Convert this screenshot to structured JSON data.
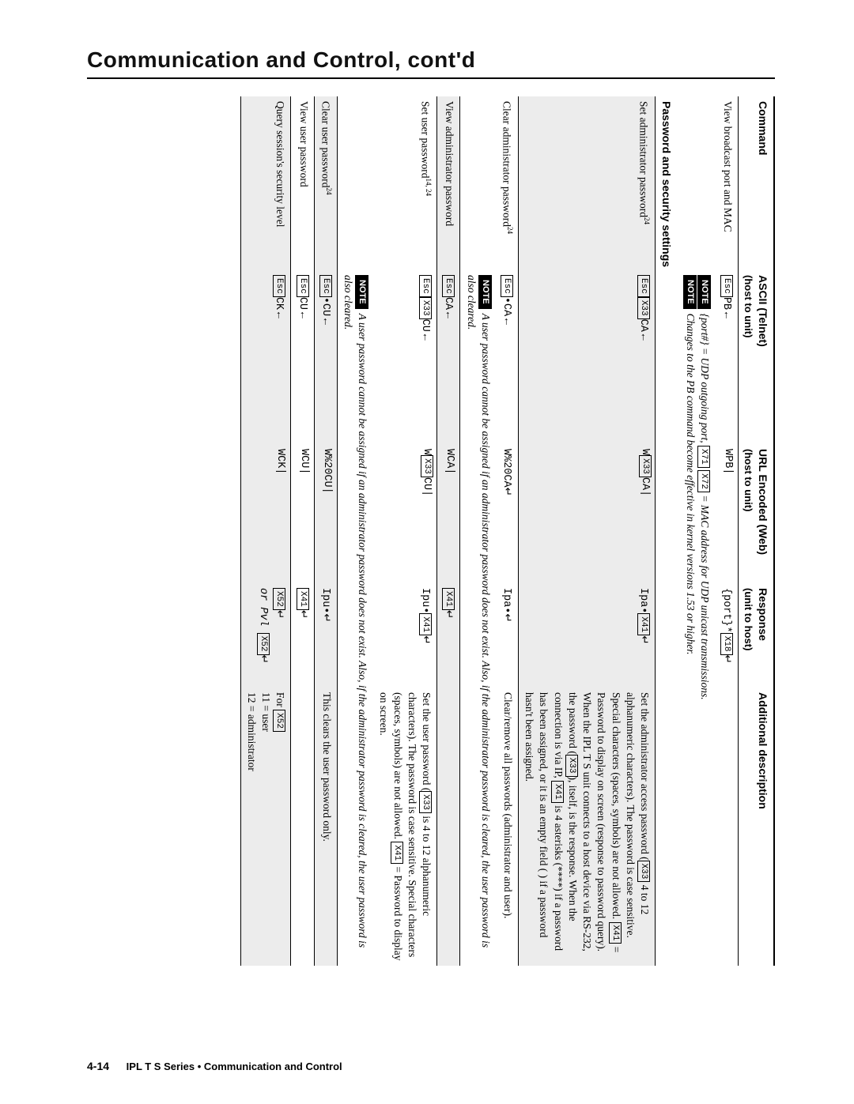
{
  "page": {
    "title": "Communication and Control, cont'd",
    "footer_page": "4-14",
    "footer_book": "IPL T S Series • Communication and Control"
  },
  "table": {
    "headers": {
      "cmd": "Command",
      "ascii": "ASCII (Telnet)",
      "ascii_sub": "(host to unit)",
      "url": "URL Encoded (Web)",
      "url_sub": "(host to unit)",
      "resp": "Response",
      "resp_sub": "(unit to host)",
      "desc": "Additional description"
    },
    "note_label": "NOTE",
    "esc_label": "Esc",
    "rows": {
      "view_broadcast": {
        "cmd": "View broadcast port and MAC",
        "ascii_tail": "PB",
        "url": "WPB",
        "resp_pre": "{port}*",
        "resp_box": "X18",
        "note1_a": "{port#} = UDP outgoing port, ",
        "note1_box1": "X71",
        "note1_mid": " ",
        "note1_box2": "X72",
        "note1_b": " = MAC address for UDP unicast transmissions.",
        "note2": "Changes to the PB command become effective in kernel versions 1.53 or higher."
      },
      "section_pw": "Password and security settings",
      "set_admin": {
        "cmd": "Set administrator password",
        "sup": "24",
        "ascii_box": "X33",
        "ascii_tail": "CA",
        "url_pre": "W",
        "url_box": "X33",
        "url_tail": "CA",
        "resp_pre": "Ipa•",
        "resp_box": "X41",
        "desc_p1": "Set the administrator access password (",
        "desc_b1": "X33",
        "desc_p2": " 4 to 12 alphanumeric characters). The password is case sensitive. Special characters (spaces, symbols) are not allowed. ",
        "desc_b2": "X41",
        "desc_p3": " = Password to display on screen (response to password query). When the IPL T S unit connects to a host device via RS-232, the password (",
        "desc_b3": "X33",
        "desc_p4": "), itself, is the response. When the connection is via IP, ",
        "desc_b4": "X41",
        "desc_p5": " is 4 asterisks (****) if a password has been assigned, or it is an empty field (     ) if a password hasn't been assigned."
      },
      "clear_admin": {
        "cmd": "Clear administrator password",
        "sup": "24",
        "ascii_tail": "•CA",
        "url": "W%20CA",
        "resp": "Ipa•",
        "desc": "Clear/remove all passwords (administrator and user)."
      },
      "note_admin": "A user password cannot be assigned if an administrator password does not exist. Also, if the administrator password is cleared, the user password is also cleared.",
      "view_admin": {
        "cmd": "View administrator password",
        "ascii_tail": "CA",
        "url": "WCA",
        "resp_box": "X41"
      },
      "set_user": {
        "cmd": "Set user password",
        "sup": "14, 24",
        "ascii_box": "X33",
        "ascii_tail": "CU",
        "url_pre": "W",
        "url_box": "X33",
        "url_tail": "CU",
        "resp_pre": "Ipu•",
        "resp_box": "X41",
        "desc_p1": "Set the user password (",
        "desc_b1": "X33",
        "desc_p2": " is 4 to 12 alphanumeric characters). The password is case sensitive. Special characters (spaces, symbols) are not allowed. ",
        "desc_b2": "X41",
        "desc_p3": " = Password to display on screen."
      },
      "note_user": "A user password cannot be assigned if an administrator password does not exist. Also, if the administrator password is cleared, the user password is also cleared.",
      "clear_user": {
        "cmd": "Clear user password",
        "sup": "24",
        "ascii_tail": "•CU",
        "url": "W%20CU",
        "resp": "Ipu•",
        "desc": "This clears the user password only."
      },
      "view_user": {
        "cmd": "View user password",
        "ascii_tail": "CU",
        "url": "WCU",
        "resp_box": "X41"
      },
      "query_sec": {
        "cmd": "Query session's security level",
        "ascii_tail": "CK",
        "url": "WCK",
        "resp1_box": "X52",
        "resp2_pre": "or Pvl",
        "resp2_box": "X52",
        "desc_p1": "For ",
        "desc_b1": "X52",
        "desc_p2": "11 = user",
        "desc_p3": "12 = administrator"
      }
    }
  }
}
